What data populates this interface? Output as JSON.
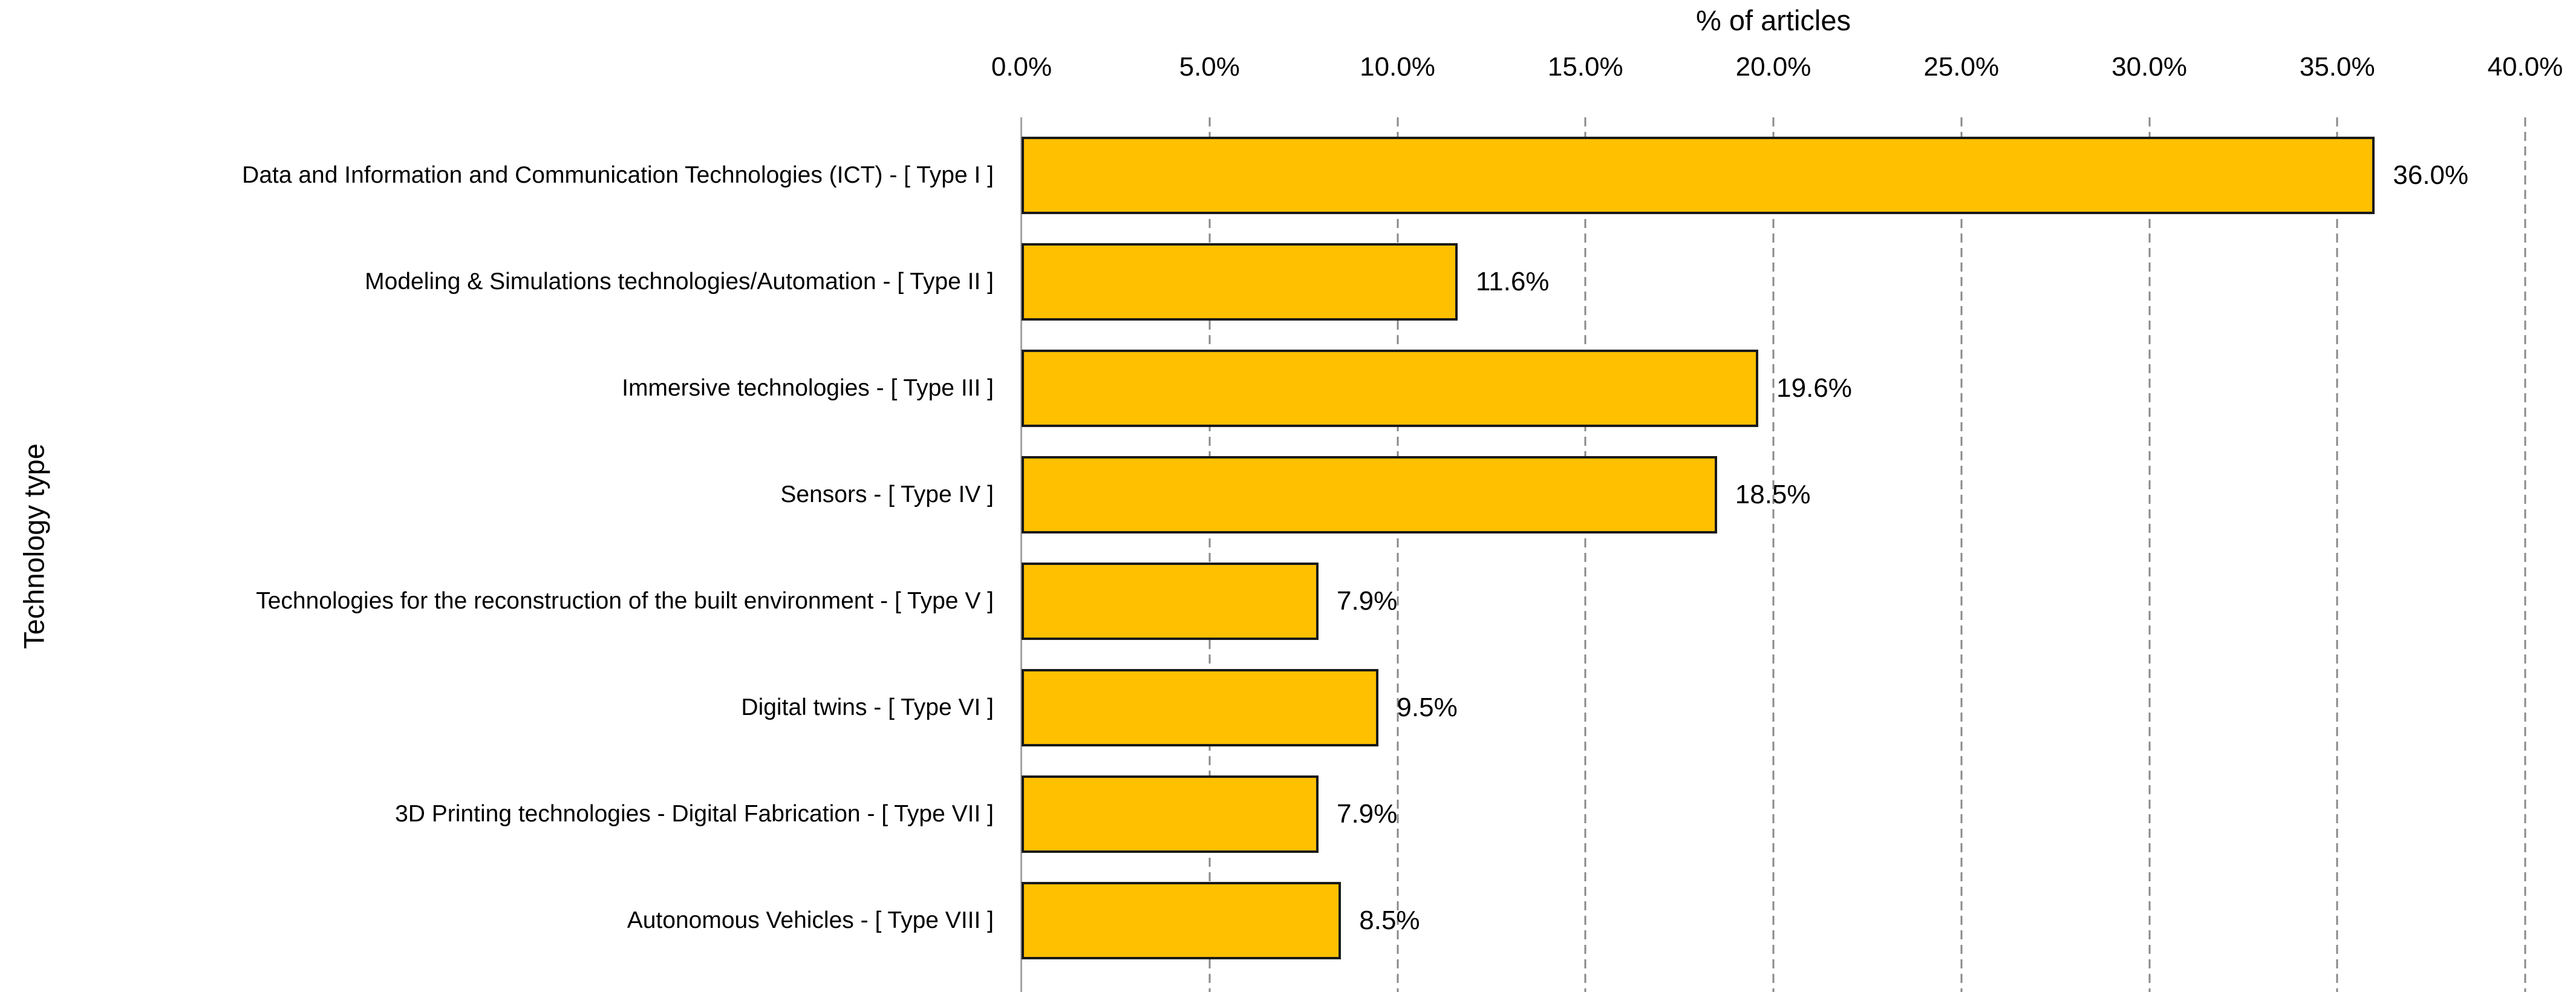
{
  "chart_data": {
    "type": "bar",
    "orientation": "horizontal",
    "title": "",
    "xlabel": "% of articles",
    "ylabel": "Technology type",
    "categories": [
      "Data and Information and Communication Technologies (ICT) - [ Type I ]",
      "Modeling & Simulations technologies/Automation - [ Type II ]",
      "Immersive technologies - [ Type III ]",
      "Sensors - [ Type IV ]",
      "Technologies for the reconstruction of the built environment - [ Type V ]",
      "Digital twins - [ Type VI ]",
      "3D Printing technologies - Digital Fabrication - [ Type VII ]",
      "Autonomous Vehicles - [ Type VIII ]"
    ],
    "values": [
      36.0,
      11.6,
      19.6,
      18.5,
      7.9,
      9.5,
      7.9,
      8.5
    ],
    "value_labels": [
      "36.0%",
      "11.6%",
      "19.6%",
      "18.5%",
      "7.9%",
      "9.5%",
      "7.9%",
      "8.5%"
    ],
    "xlim": [
      0,
      40
    ],
    "x_ticks": [
      0,
      5,
      10,
      15,
      20,
      25,
      30,
      35,
      40
    ],
    "x_tick_labels": [
      "0.0%",
      "5.0%",
      "10.0%",
      "15.0%",
      "20.0%",
      "25.0%",
      "30.0%",
      "35.0%",
      "40.0%"
    ],
    "grid": "vertical-dashed",
    "legend": "none",
    "colors": {
      "bar_fill": "#FFC000",
      "bar_border": "#1a1a1a",
      "gridline": "#8a8a8a",
      "axis_line": "#a3a3a3",
      "text": "#000000",
      "background": "#FFFFFF"
    }
  }
}
